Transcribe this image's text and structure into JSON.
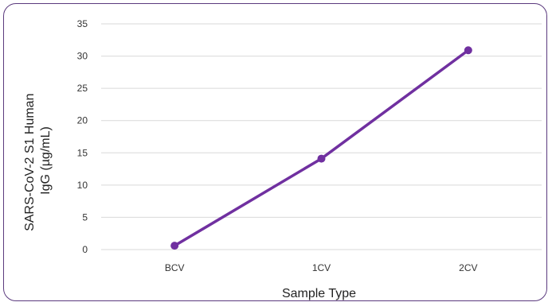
{
  "chart_data": {
    "type": "line",
    "title": "",
    "xlabel": "Sample Type",
    "ylabel_lines": [
      "SARS-CoV-2 S1 Human",
      "IgG (µg/mL)"
    ],
    "categories": [
      "BCV",
      "1CV",
      "2CV"
    ],
    "series": [
      {
        "values": [
          0.6,
          14.1,
          30.9
        ]
      }
    ],
    "ylim": [
      0,
      35
    ],
    "yticks": [
      0,
      5,
      10,
      15,
      20,
      25,
      30,
      35
    ],
    "grid": true,
    "legend": "none",
    "colors": {
      "line": "#7030a0",
      "grid": "#d9d9d9",
      "frame": "#5b3a7e"
    }
  }
}
